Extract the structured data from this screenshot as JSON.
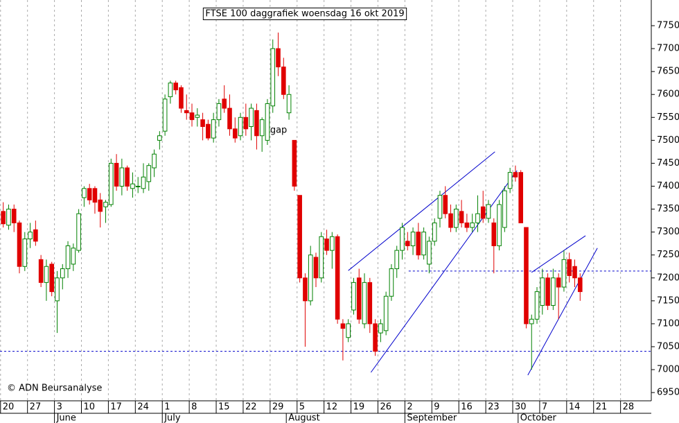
{
  "chart_data": {
    "type": "candlestick",
    "title": "FTSE 100 daggrafiek woensdag 16 okt 2019",
    "copyright": "© ADN Beursanalyse",
    "annotation": {
      "text": "gap",
      "x": 49.5,
      "y": 7522
    },
    "up_color": "#008000",
    "down_color": "#e00000",
    "line_color": "#0000cc",
    "grid": true,
    "xlim": [
      -0.6,
      120.2
    ],
    "ylim": [
      6932,
      7806
    ],
    "yticks": [
      6950,
      7000,
      7050,
      7100,
      7150,
      7200,
      7250,
      7300,
      7350,
      7400,
      7450,
      7500,
      7550,
      7600,
      7650,
      7700,
      7750
    ],
    "xticks": [
      {
        "value": 0,
        "label": "20"
      },
      {
        "value": 5,
        "label": "27"
      },
      {
        "value": 10,
        "label": "3"
      },
      {
        "value": 15,
        "label": "10"
      },
      {
        "value": 20,
        "label": "17"
      },
      {
        "value": 25,
        "label": "24"
      },
      {
        "value": 30,
        "label": "1"
      },
      {
        "value": 35,
        "label": "8"
      },
      {
        "value": 40,
        "label": "15"
      },
      {
        "value": 45,
        "label": "22"
      },
      {
        "value": 50,
        "label": "29"
      },
      {
        "value": 55,
        "label": "5"
      },
      {
        "value": 60,
        "label": "12"
      },
      {
        "value": 65,
        "label": "19"
      },
      {
        "value": 70,
        "label": "26"
      },
      {
        "value": 75,
        "label": "2"
      },
      {
        "value": 80,
        "label": "9"
      },
      {
        "value": 85,
        "label": "16"
      },
      {
        "value": 90,
        "label": "23"
      },
      {
        "value": 95,
        "label": "30"
      },
      {
        "value": 100,
        "label": "7"
      },
      {
        "value": 105,
        "label": "14"
      },
      {
        "value": 110,
        "label": "21"
      },
      {
        "value": 115,
        "label": "28"
      }
    ],
    "months": [
      {
        "value": 10,
        "label": "June"
      },
      {
        "value": 30,
        "label": "July"
      },
      {
        "value": 53,
        "label": "August"
      },
      {
        "value": 75,
        "label": "September"
      },
      {
        "value": 96,
        "label": "October"
      }
    ],
    "x": [
      0,
      1,
      2,
      3,
      4,
      5,
      6,
      7,
      8,
      9,
      10,
      11,
      12,
      13,
      14,
      15,
      16,
      17,
      18,
      19,
      20,
      21,
      22,
      23,
      24,
      25,
      26,
      27,
      28,
      29,
      30,
      31,
      32,
      33,
      34,
      35,
      36,
      37,
      38,
      39,
      40,
      41,
      42,
      43,
      44,
      45,
      46,
      47,
      48,
      49,
      50,
      51,
      52,
      53,
      54,
      55,
      56,
      57,
      58,
      59,
      60,
      61,
      62,
      63,
      64,
      65,
      66,
      67,
      68,
      69,
      70,
      71,
      72,
      73,
      74,
      75,
      76,
      77,
      78,
      79,
      80,
      81,
      82,
      83,
      84,
      85,
      86,
      87,
      88,
      89,
      90,
      91,
      92,
      93,
      94,
      95,
      96,
      97,
      98,
      99,
      100,
      101,
      102,
      103,
      104,
      105,
      106,
      107
    ],
    "open": [
      7345,
      7315,
      7350,
      7320,
      7225,
      7285,
      7305,
      7240,
      7190,
      7230,
      7150,
      7200,
      7220,
      7230,
      7260,
      7375,
      7395,
      7395,
      7370,
      7355,
      7360,
      7450,
      7400,
      7440,
      7395,
      7400,
      7395,
      7410,
      7440,
      7500,
      7520,
      7595,
      7625,
      7615,
      7565,
      7560,
      7550,
      7545,
      7535,
      7505,
      7545,
      7590,
      7570,
      7525,
      7510,
      7550,
      7530,
      7565,
      7510,
      7500,
      7575,
      7700,
      7660,
      7560,
      7500,
      7380,
      7200,
      7150,
      7245,
      7200,
      7285,
      7260,
      7290,
      7100,
      7070,
      7130,
      7200,
      7100,
      7190,
      7100,
      7080,
      7085,
      7160,
      7220,
      7260,
      7280,
      7270,
      7300,
      7250,
      7230,
      7280,
      7330,
      7380,
      7340,
      7310,
      7345,
      7320,
      7310,
      7320,
      7355,
      7330,
      7320,
      7270,
      7310,
      7395,
      7430,
      7430,
      7310,
      7100,
      7110,
      7140,
      7200,
      7140,
      7200,
      7180,
      7240,
      7225,
      7200
    ],
    "high": [
      7365,
      7360,
      7360,
      7325,
      7300,
      7320,
      7325,
      7250,
      7240,
      7235,
      7215,
      7230,
      7280,
      7275,
      7350,
      7400,
      7405,
      7400,
      7385,
      7370,
      7460,
      7470,
      7460,
      7445,
      7430,
      7420,
      7450,
      7450,
      7480,
      7520,
      7600,
      7630,
      7630,
      7620,
      7600,
      7580,
      7570,
      7560,
      7545,
      7560,
      7590,
      7620,
      7600,
      7550,
      7560,
      7580,
      7580,
      7580,
      7550,
      7590,
      7720,
      7735,
      7680,
      7620,
      7500,
      7380,
      7210,
      7270,
      7255,
      7300,
      7305,
      7300,
      7295,
      7110,
      7110,
      7200,
      7220,
      7210,
      7200,
      7110,
      7110,
      7170,
      7230,
      7270,
      7320,
      7300,
      7310,
      7320,
      7310,
      7290,
      7330,
      7390,
      7400,
      7360,
      7360,
      7370,
      7340,
      7340,
      7380,
      7390,
      7370,
      7330,
      7370,
      7400,
      7440,
      7445,
      7435,
      7310,
      7120,
      7180,
      7220,
      7210,
      7220,
      7210,
      7260,
      7255,
      7240,
      7210
    ],
    "low": [
      7310,
      7305,
      7300,
      7210,
      7215,
      7265,
      7270,
      7180,
      7150,
      7160,
      7080,
      7175,
      7200,
      7215,
      7255,
      7355,
      7360,
      7340,
      7310,
      7320,
      7355,
      7390,
      7380,
      7390,
      7375,
      7385,
      7385,
      7390,
      7420,
      7480,
      7510,
      7580,
      7600,
      7560,
      7545,
      7530,
      7530,
      7500,
      7500,
      7495,
      7530,
      7560,
      7510,
      7495,
      7500,
      7510,
      7500,
      7480,
      7475,
      7490,
      7560,
      7640,
      7590,
      7545,
      7390,
      7190,
      7050,
      7140,
      7180,
      7190,
      7250,
      7220,
      7100,
      7020,
      7060,
      7120,
      7100,
      7090,
      7080,
      7030,
      7060,
      7075,
      7150,
      7200,
      7240,
      7260,
      7250,
      7240,
      7240,
      7210,
      7270,
      7310,
      7330,
      7300,
      7300,
      7310,
      7300,
      7300,
      7300,
      7320,
      7320,
      7210,
      7260,
      7300,
      7385,
      7410,
      7320,
      7090,
      7000,
      7100,
      7120,
      7130,
      7130,
      7110,
      7170,
      7190,
      7180,
      7150
    ],
    "close": [
      7318,
      7350,
      7320,
      7225,
      7285,
      7300,
      7280,
      7190,
      7225,
      7170,
      7200,
      7220,
      7270,
      7265,
      7340,
      7395,
      7370,
      7365,
      7345,
      7365,
      7450,
      7400,
      7440,
      7400,
      7405,
      7400,
      7420,
      7445,
      7470,
      7510,
      7590,
      7625,
      7610,
      7570,
      7560,
      7545,
      7555,
      7530,
      7505,
      7545,
      7580,
      7570,
      7525,
      7505,
      7550,
      7525,
      7570,
      7510,
      7545,
      7580,
      7700,
      7660,
      7600,
      7600,
      7400,
      7200,
      7150,
      7250,
      7200,
      7290,
      7260,
      7290,
      7110,
      7090,
      7100,
      7190,
      7110,
      7190,
      7100,
      7040,
      7100,
      7160,
      7220,
      7260,
      7310,
      7270,
      7300,
      7250,
      7300,
      7280,
      7320,
      7380,
      7340,
      7310,
      7350,
      7320,
      7310,
      7320,
      7340,
      7330,
      7360,
      7270,
      7360,
      7390,
      7430,
      7420,
      7320,
      7100,
      7110,
      7170,
      7200,
      7140,
      7200,
      7180,
      7240,
      7205,
      7200,
      7170
    ],
    "trend_lines": [
      {
        "x": [
          64,
          91.2
        ],
        "y": [
          7216,
          7475
        ]
      },
      {
        "x": [
          68.2,
          95.3
        ],
        "y": [
          6994,
          7434
        ]
      },
      {
        "x": [
          98,
          108
        ],
        "y": [
          7212,
          7292
        ]
      },
      {
        "x": [
          97.3,
          110.2
        ],
        "y": [
          6988,
          7265
        ]
      }
    ],
    "levels": [
      {
        "y": 7040
      },
      {
        "y": 7215,
        "from": 75.2
      }
    ]
  }
}
